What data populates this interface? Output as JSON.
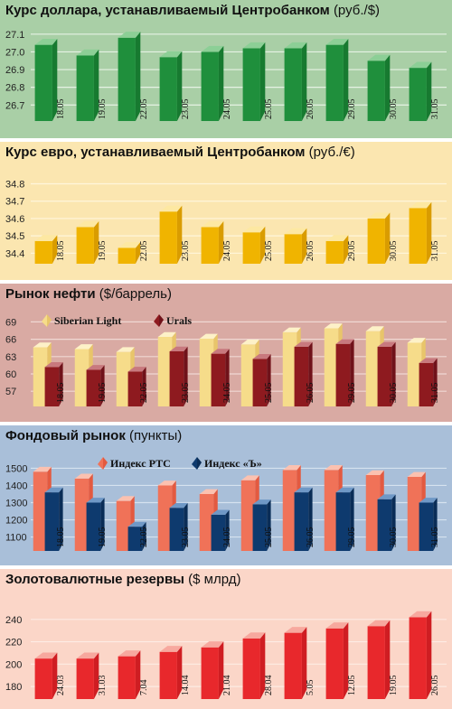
{
  "charts": [
    {
      "id": "usd",
      "title": "Курс доллара, устанавливаемый Центробанком",
      "unit": "(руб./$)",
      "background": "#a9cfa6",
      "grid": "#e6f2e4",
      "yticks": [
        "27.1",
        "27.0",
        "26.9",
        "26.8",
        "26.7"
      ],
      "chart_data": {
        "type": "bar",
        "title": "Курс доллара, устанавливаемый Центробанком (руб./$)",
        "categories": [
          "18.05",
          "19.05",
          "22.05",
          "23.05",
          "24.05",
          "25.05",
          "26.05",
          "29.05",
          "30.05",
          "31.05"
        ],
        "ylim": [
          26.63,
          27.15
        ],
        "grid": true,
        "series": [
          {
            "values": [
              27.04,
              26.98,
              27.08,
              26.97,
              27.0,
              27.02,
              27.02,
              27.04,
              26.95,
              26.91
            ],
            "front": "#1f8f3c",
            "side": "#177a30",
            "top": "#8ccf96"
          }
        ]
      }
    },
    {
      "id": "eur",
      "title": "Курс евро, устанавливаемый Центробанком",
      "unit": "(руб./€)",
      "background": "#fbe6b0",
      "grid": "#fff6dc",
      "yticks": [
        "34.8",
        "34.7",
        "34.6",
        "34.5",
        "34.4"
      ],
      "chart_data": {
        "type": "bar",
        "title": "Курс евро, устанавливаемый Центробанком (руб./€)",
        "categories": [
          "18.05",
          "19.05",
          "22.05",
          "23.05",
          "24.05",
          "25.05",
          "26.05",
          "29.05",
          "30.05",
          "31.05"
        ],
        "ylim": [
          34.36,
          34.86
        ],
        "grid": true,
        "series": [
          {
            "values": [
              34.47,
              34.55,
              34.43,
              34.64,
              34.55,
              34.52,
              34.51,
              34.47,
              34.6,
              34.66
            ],
            "front": "#f0b400",
            "side": "#d99c00",
            "top": "#fde8a2"
          }
        ]
      }
    },
    {
      "id": "oil",
      "title": "Рынок нефти",
      "unit": "($/баррель)",
      "background": "#d9aaa3",
      "grid": "#f0d8d3",
      "yticks": [
        "69",
        "66",
        "63",
        "60",
        "57"
      ],
      "chart_data": {
        "type": "bar",
        "title": "Рынок нефти ($/баррель)",
        "categories": [
          "18.05",
          "19.05",
          "22.05",
          "23.05",
          "24.05",
          "25.05",
          "26.05",
          "29.05",
          "30.05",
          "31.05"
        ],
        "ylim": [
          55.0,
          70.0
        ],
        "grid": true,
        "legend": "top-left",
        "series": [
          {
            "name": "Siberian Light",
            "values": [
              64.6,
              64.3,
              63.8,
              66.4,
              66.1,
              65.1,
              67.2,
              67.9,
              67.4,
              65.4
            ],
            "front": "#f6dc8a",
            "side": "#e8c56a",
            "top": "#fdf1c8"
          },
          {
            "name": "Urals",
            "values": [
              61.2,
              60.7,
              60.4,
              63.9,
              63.5,
              62.6,
              64.7,
              65.2,
              64.7,
              61.9
            ],
            "front": "#8e1a1f",
            "side": "#70121a",
            "top": "#c8797e"
          }
        ]
      }
    },
    {
      "id": "stock",
      "title": "Фондовый рынок",
      "unit": "(пункты)",
      "background": "#a9bfd9",
      "grid": "#d6e2ef",
      "yticks": [
        "1500",
        "1400",
        "1300",
        "1200",
        "1100"
      ],
      "chart_data": {
        "type": "bar",
        "title": "Фондовый рынок (пункты)",
        "categories": [
          "18.05",
          "19.05",
          "22.05",
          "23.05",
          "24.05",
          "25.05",
          "26.05",
          "29.05",
          "30.05",
          "31.05"
        ],
        "ylim": [
          1040,
          1560
        ],
        "grid": true,
        "legend": "top-left",
        "series": [
          {
            "name": "Индекс РТС",
            "values": [
              1480,
              1440,
              1310,
              1400,
              1350,
              1430,
              1490,
              1490,
              1460,
              1450
            ],
            "front": "#f07258",
            "side": "#e35a40",
            "top": "#fbc1b0"
          },
          {
            "name": "Индекс «Ъ»",
            "values": [
              1360,
              1300,
              1160,
              1270,
              1230,
              1290,
              1360,
              1360,
              1320,
              1300
            ],
            "front": "#0e3a6e",
            "side": "#0a2d57",
            "top": "#6f98c6"
          }
        ]
      }
    },
    {
      "id": "reserves",
      "title": "Золотовалютные резервы",
      "unit": "($ млрд)",
      "background": "#fbd6c8",
      "grid": "#fdece4",
      "yticks": [
        "240",
        "220",
        "200",
        "180"
      ],
      "chart_data": {
        "type": "bar",
        "title": "Золотовалютные резервы ($ млрд)",
        "categories": [
          "24.03",
          "31.03",
          "7.04",
          "14.04",
          "21.04",
          "28.04",
          "5.05",
          "12.05",
          "19.05",
          "26.05"
        ],
        "ylim": [
          172,
          256
        ],
        "grid": true,
        "series": [
          {
            "values": [
              205,
              205,
              207,
              211,
              215,
              223,
              228,
              232,
              234,
              242
            ],
            "front": "#e8282c",
            "side": "#cf1d22",
            "top": "#f7a89e"
          }
        ]
      }
    }
  ]
}
